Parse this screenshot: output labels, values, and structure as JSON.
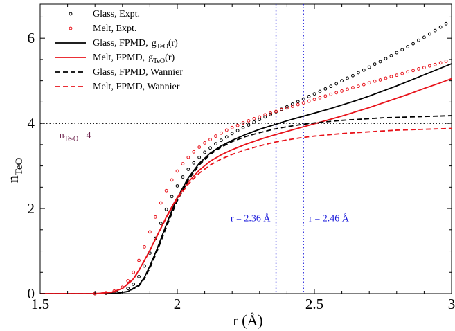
{
  "chart_data": {
    "type": "line",
    "xlabel": "r (Å)",
    "ylabel": "n",
    "ylabel_sub": "TeO",
    "xlim": [
      1.5,
      3.0
    ],
    "ylim": [
      0,
      6.8
    ],
    "xticks": [
      1.5,
      2,
      2.5,
      3
    ],
    "xtick_labels": [
      "1.5",
      "2",
      "2.5",
      "3"
    ],
    "yticks": [
      0,
      2,
      4,
      6
    ],
    "ytick_labels": [
      "0",
      "2",
      "4",
      "6"
    ],
    "grid": false,
    "legend_position": "top-left",
    "series": [
      {
        "name": "Glass, Expt.",
        "style": "circles",
        "color": "#000000",
        "x": [
          1.7,
          1.74,
          1.78,
          1.82,
          1.84,
          1.86,
          1.88,
          1.9,
          1.92,
          1.94,
          1.96,
          1.98,
          2.0,
          2.02,
          2.04,
          2.06,
          2.08,
          2.1,
          2.12,
          2.14,
          2.16,
          2.18,
          2.2,
          2.22,
          2.24,
          2.26,
          2.28,
          2.3,
          2.32,
          2.34,
          2.36,
          2.38,
          2.4,
          2.42,
          2.44,
          2.46,
          2.48,
          2.5,
          2.52,
          2.54,
          2.56,
          2.58,
          2.6,
          2.62,
          2.64,
          2.66,
          2.68,
          2.7,
          2.72,
          2.74,
          2.76,
          2.78,
          2.8,
          2.82,
          2.84,
          2.86,
          2.88,
          2.9,
          2.92,
          2.94,
          2.96,
          2.98
        ],
        "y": [
          0.0,
          0.01,
          0.03,
          0.12,
          0.22,
          0.4,
          0.65,
          0.95,
          1.3,
          1.65,
          1.98,
          2.28,
          2.53,
          2.74,
          2.92,
          3.07,
          3.2,
          3.32,
          3.42,
          3.52,
          3.6,
          3.68,
          3.76,
          3.83,
          3.9,
          3.96,
          4.03,
          4.09,
          4.15,
          4.21,
          4.27,
          4.33,
          4.39,
          4.45,
          4.51,
          4.57,
          4.63,
          4.69,
          4.75,
          4.81,
          4.87,
          4.93,
          5.0,
          5.06,
          5.12,
          5.19,
          5.25,
          5.32,
          5.39,
          5.45,
          5.52,
          5.59,
          5.66,
          5.73,
          5.8,
          5.87,
          5.95,
          6.02,
          6.1,
          6.18,
          6.26,
          6.34
        ]
      },
      {
        "name": "Melt, Expt.",
        "style": "circles",
        "color": "#e8121a",
        "x": [
          1.7,
          1.74,
          1.77,
          1.8,
          1.82,
          1.84,
          1.86,
          1.88,
          1.9,
          1.92,
          1.94,
          1.96,
          1.98,
          2.0,
          2.02,
          2.04,
          2.06,
          2.08,
          2.1,
          2.12,
          2.14,
          2.16,
          2.18,
          2.2,
          2.22,
          2.24,
          2.26,
          2.28,
          2.3,
          2.32,
          2.34,
          2.36,
          2.38,
          2.4,
          2.42,
          2.44,
          2.46,
          2.48,
          2.5,
          2.52,
          2.54,
          2.56,
          2.58,
          2.6,
          2.62,
          2.64,
          2.66,
          2.68,
          2.7,
          2.72,
          2.74,
          2.76,
          2.78,
          2.8,
          2.82,
          2.84,
          2.86,
          2.88,
          2.9,
          2.92,
          2.94,
          2.96,
          2.98
        ],
        "y": [
          0.0,
          0.02,
          0.06,
          0.15,
          0.3,
          0.5,
          0.78,
          1.1,
          1.45,
          1.8,
          2.13,
          2.42,
          2.67,
          2.88,
          3.05,
          3.2,
          3.33,
          3.44,
          3.54,
          3.62,
          3.7,
          3.77,
          3.84,
          3.9,
          3.95,
          4.01,
          4.06,
          4.11,
          4.15,
          4.2,
          4.24,
          4.28,
          4.32,
          4.36,
          4.4,
          4.44,
          4.48,
          4.52,
          4.56,
          4.6,
          4.64,
          4.68,
          4.72,
          4.76,
          4.8,
          4.84,
          4.87,
          4.91,
          4.95,
          4.99,
          5.02,
          5.06,
          5.1,
          5.13,
          5.17,
          5.21,
          5.24,
          5.28,
          5.31,
          5.35,
          5.38,
          5.42,
          5.46
        ]
      },
      {
        "name": "Glass, FPMD,",
        "name_extra": "g",
        "name_extra_sub": "TeO",
        "name_extra_tail": "(r)",
        "style": "solid",
        "color": "#000000",
        "x": [
          1.5,
          1.7,
          1.78,
          1.82,
          1.86,
          1.88,
          1.9,
          1.92,
          1.94,
          1.96,
          1.98,
          2.0,
          2.04,
          2.08,
          2.12,
          2.16,
          2.2,
          2.25,
          2.3,
          2.35,
          2.4,
          2.45,
          2.5,
          2.55,
          2.6,
          2.65,
          2.7,
          2.75,
          2.8,
          2.85,
          2.9,
          2.95,
          3.0
        ],
        "y": [
          0.0,
          0.0,
          0.01,
          0.05,
          0.2,
          0.38,
          0.65,
          0.95,
          1.28,
          1.62,
          1.95,
          2.25,
          2.72,
          3.06,
          3.3,
          3.47,
          3.6,
          3.74,
          3.86,
          3.96,
          4.06,
          4.15,
          4.24,
          4.33,
          4.43,
          4.53,
          4.64,
          4.76,
          4.88,
          5.01,
          5.14,
          5.27,
          5.4
        ]
      },
      {
        "name": "Melt, FPMD,",
        "name_extra": "g",
        "name_extra_sub": "TeO",
        "name_extra_tail": "(r)",
        "style": "solid",
        "color": "#e8121a",
        "x": [
          1.5,
          1.7,
          1.76,
          1.8,
          1.84,
          1.86,
          1.88,
          1.9,
          1.92,
          1.94,
          1.96,
          1.98,
          2.0,
          2.04,
          2.08,
          2.12,
          2.16,
          2.2,
          2.25,
          2.3,
          2.35,
          2.4,
          2.45,
          2.5,
          2.55,
          2.6,
          2.65,
          2.7,
          2.75,
          2.8,
          2.85,
          2.9,
          2.95,
          3.0
        ],
        "y": [
          0.0,
          0.0,
          0.03,
          0.12,
          0.35,
          0.55,
          0.78,
          1.02,
          1.28,
          1.54,
          1.8,
          2.04,
          2.26,
          2.62,
          2.9,
          3.11,
          3.26,
          3.38,
          3.51,
          3.62,
          3.72,
          3.81,
          3.9,
          3.99,
          4.08,
          4.17,
          4.27,
          4.37,
          4.48,
          4.59,
          4.7,
          4.82,
          4.93,
          5.05
        ]
      },
      {
        "name": "Glass, FPMD, Wannier",
        "style": "dashed",
        "color": "#000000",
        "x": [
          1.5,
          1.72,
          1.78,
          1.82,
          1.86,
          1.88,
          1.9,
          1.92,
          1.94,
          1.96,
          1.98,
          2.0,
          2.04,
          2.08,
          2.12,
          2.16,
          2.2,
          2.25,
          2.3,
          2.35,
          2.4,
          2.45,
          2.5,
          2.55,
          2.6,
          2.65,
          2.7,
          2.75,
          2.8,
          2.85,
          2.9,
          2.95,
          3.0
        ],
        "y": [
          0.0,
          0.0,
          0.01,
          0.05,
          0.18,
          0.35,
          0.6,
          0.9,
          1.22,
          1.56,
          1.88,
          2.18,
          2.67,
          3.02,
          3.27,
          3.44,
          3.57,
          3.69,
          3.78,
          3.86,
          3.92,
          3.97,
          4.01,
          4.04,
          4.07,
          4.09,
          4.11,
          4.13,
          4.14,
          4.15,
          4.16,
          4.17,
          4.18
        ]
      },
      {
        "name": "Melt, FPMD, Wannier",
        "style": "dashed",
        "color": "#e8121a",
        "x": [
          1.5,
          1.7,
          1.76,
          1.8,
          1.84,
          1.86,
          1.88,
          1.9,
          1.92,
          1.94,
          1.96,
          1.98,
          2.0,
          2.04,
          2.08,
          2.12,
          2.16,
          2.2,
          2.25,
          2.3,
          2.35,
          2.4,
          2.45,
          2.5,
          2.55,
          2.6,
          2.65,
          2.7,
          2.75,
          2.8,
          2.85,
          2.9,
          2.95,
          3.0
        ],
        "y": [
          0.0,
          0.0,
          0.03,
          0.12,
          0.34,
          0.54,
          0.77,
          1.01,
          1.27,
          1.53,
          1.78,
          2.02,
          2.23,
          2.57,
          2.83,
          3.02,
          3.16,
          3.27,
          3.38,
          3.47,
          3.55,
          3.61,
          3.66,
          3.7,
          3.73,
          3.76,
          3.78,
          3.8,
          3.82,
          3.84,
          3.85,
          3.86,
          3.87,
          3.88
        ]
      }
    ],
    "reference_lines": [
      {
        "orientation": "horizontal",
        "value": 4,
        "style": "dotted",
        "color": "#000000"
      },
      {
        "orientation": "vertical",
        "value": 2.36,
        "style": "dotted",
        "color": "#1a1adb"
      },
      {
        "orientation": "vertical",
        "value": 2.46,
        "style": "dotted",
        "color": "#1a1adb"
      }
    ],
    "annotations": [
      {
        "text": "r = 2.36 Å",
        "x": 2.36,
        "y": 1.7,
        "side": "left",
        "color": "#1a1adb"
      },
      {
        "text": "r = 2.46 Å",
        "x": 2.46,
        "y": 1.7,
        "side": "right",
        "color": "#1a1adb"
      },
      {
        "text_main": "n",
        "text_sub": "Te-O",
        "text_tail": "= 4",
        "x": 1.57,
        "y": 3.65,
        "color": "#6b1f4a"
      }
    ]
  }
}
